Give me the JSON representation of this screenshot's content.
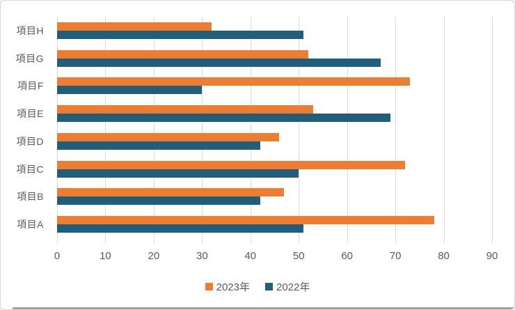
{
  "window": {
    "background": "#ffffff",
    "border_color": "#d7d7d7",
    "bottom_edge_color": "#909090"
  },
  "chart_data": {
    "type": "bar",
    "orientation": "horizontal",
    "title": "",
    "xlabel": "",
    "ylabel": "",
    "categories": [
      "項目H",
      "項目G",
      "項目F",
      "項目E",
      "項目D",
      "項目C",
      "項目B",
      "項目A"
    ],
    "series": [
      {
        "name": "2023年",
        "color": "#ED7D31",
        "values": [
          32,
          52,
          73,
          53,
          46,
          72,
          47,
          78
        ]
      },
      {
        "name": "2022年",
        "color": "#215E7C",
        "values": [
          51,
          67,
          30,
          69,
          42,
          50,
          42,
          51
        ]
      }
    ],
    "xlim": [
      0,
      90
    ],
    "x_ticks": [
      0,
      10,
      20,
      30,
      40,
      50,
      60,
      70,
      80,
      90
    ],
    "grid": true,
    "gridline_color": "#d9d9d9",
    "tick_label_color": "#595959",
    "legend_position": "bottom"
  }
}
